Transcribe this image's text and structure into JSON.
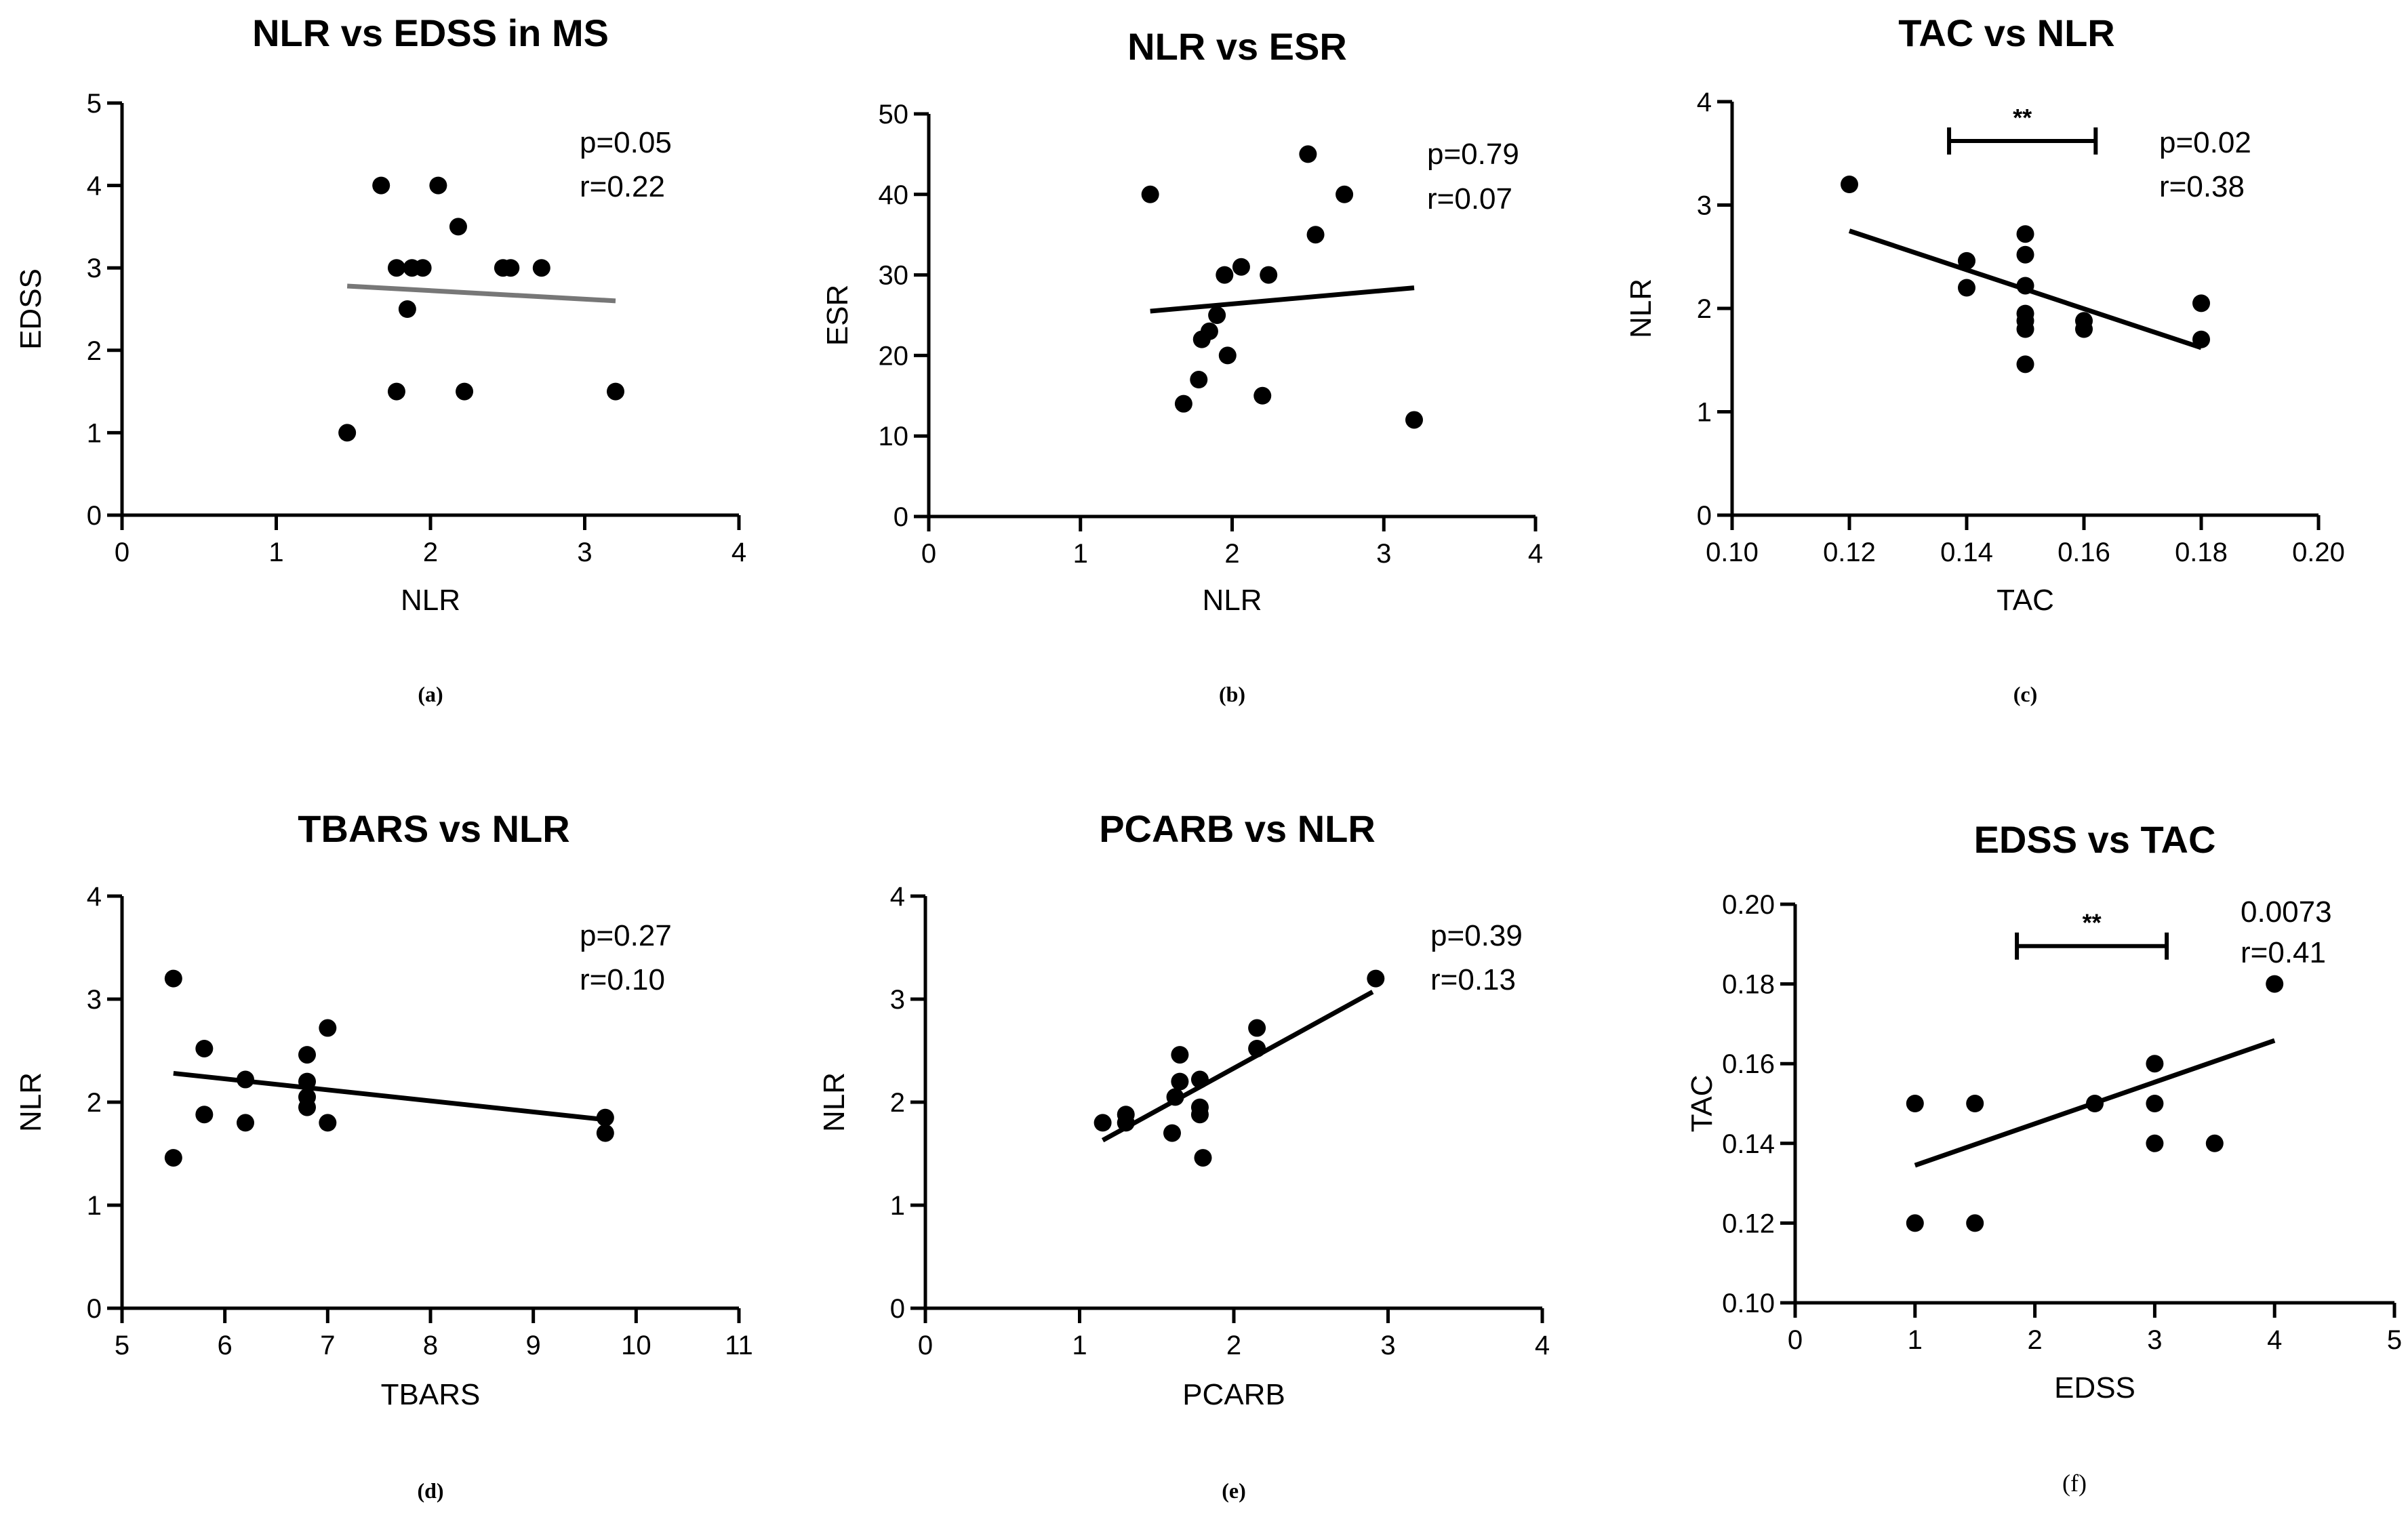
{
  "chart_data": [
    {
      "type": "scatter",
      "title": "NLR vs EDSS in MS",
      "xlabel": "NLR",
      "ylabel": "EDSS",
      "xlim": [
        0,
        4
      ],
      "ylim": [
        0,
        5
      ],
      "xticks": [
        0,
        1,
        2,
        3,
        4
      ],
      "yticks": [
        0,
        1,
        2,
        3,
        4,
        5
      ],
      "points": [
        [
          1.46,
          1
        ],
        [
          1.68,
          4
        ],
        [
          1.78,
          1.5
        ],
        [
          1.78,
          3
        ],
        [
          1.85,
          2.5
        ],
        [
          1.88,
          3
        ],
        [
          1.95,
          3
        ],
        [
          2.05,
          4
        ],
        [
          2.18,
          3.5
        ],
        [
          2.22,
          1.5
        ],
        [
          2.47,
          3
        ],
        [
          2.52,
          3
        ],
        [
          2.72,
          3
        ],
        [
          3.2,
          1.5
        ]
      ],
      "fit": {
        "x": [
          1.46,
          3.2
        ],
        "y": [
          2.78,
          2.6
        ],
        "color": "#777777"
      },
      "annotations": [
        "p=0.05",
        "r=0.22"
      ],
      "panel_label": "(a)"
    },
    {
      "type": "scatter",
      "title": "NLR vs ESR",
      "xlabel": "NLR",
      "ylabel": "ESR",
      "xlim": [
        0,
        4
      ],
      "ylim": [
        0,
        50
      ],
      "xticks": [
        0,
        1,
        2,
        3,
        4
      ],
      "yticks": [
        0,
        10,
        20,
        30,
        40,
        50
      ],
      "points": [
        [
          1.46,
          40
        ],
        [
          1.68,
          14
        ],
        [
          1.78,
          17
        ],
        [
          1.8,
          22
        ],
        [
          1.85,
          23
        ],
        [
          1.9,
          25
        ],
        [
          1.95,
          30
        ],
        [
          1.97,
          20
        ],
        [
          2.06,
          31
        ],
        [
          2.2,
          15
        ],
        [
          2.24,
          30
        ],
        [
          2.5,
          45
        ],
        [
          2.55,
          35
        ],
        [
          2.74,
          40
        ],
        [
          3.2,
          12
        ]
      ],
      "fit": {
        "x": [
          1.46,
          3.2
        ],
        "y": [
          25.5,
          28.4
        ],
        "color": "#000000"
      },
      "annotations": [
        "p=0.79",
        "r=0.07"
      ],
      "panel_label": "(b)"
    },
    {
      "type": "scatter",
      "title": "TAC vs NLR",
      "xlabel": "TAC",
      "ylabel": "NLR",
      "xlim": [
        0.1,
        0.2
      ],
      "ylim": [
        0,
        4
      ],
      "xticks": [
        "0.10",
        "0.12",
        "0.14",
        "0.16",
        "0.18",
        "0.20"
      ],
      "yticks": [
        0,
        1,
        2,
        3,
        4
      ],
      "points": [
        [
          0.12,
          3.2
        ],
        [
          0.14,
          2.46
        ],
        [
          0.14,
          2.2
        ],
        [
          0.15,
          2.72
        ],
        [
          0.15,
          2.52
        ],
        [
          0.15,
          2.22
        ],
        [
          0.15,
          1.95
        ],
        [
          0.15,
          1.88
        ],
        [
          0.15,
          1.8
        ],
        [
          0.15,
          1.46
        ],
        [
          0.16,
          1.88
        ],
        [
          0.16,
          1.8
        ],
        [
          0.18,
          2.05
        ],
        [
          0.18,
          1.7
        ]
      ],
      "fit": {
        "x": [
          0.12,
          0.18
        ],
        "y": [
          2.75,
          1.62
        ],
        "color": "#000000"
      },
      "significance": {
        "x1": 0.137,
        "x2": 0.162,
        "y": 3.62,
        "label": "**"
      },
      "annotations": [
        "p=0.02",
        "r=0.38"
      ],
      "panel_label": "(c)"
    },
    {
      "type": "scatter",
      "title": "TBARS vs NLR",
      "xlabel": "TBARS",
      "ylabel": "NLR",
      "xlim": [
        5,
        11
      ],
      "ylim": [
        0,
        4
      ],
      "xticks": [
        5,
        6,
        7,
        8,
        9,
        10,
        11
      ],
      "yticks": [
        0,
        1,
        2,
        3,
        4
      ],
      "points": [
        [
          5.5,
          3.2
        ],
        [
          5.5,
          1.46
        ],
        [
          5.8,
          2.52
        ],
        [
          5.8,
          1.88
        ],
        [
          6.2,
          2.22
        ],
        [
          6.2,
          1.8
        ],
        [
          6.8,
          2.46
        ],
        [
          6.8,
          2.2
        ],
        [
          6.8,
          2.05
        ],
        [
          6.8,
          1.95
        ],
        [
          7.0,
          2.72
        ],
        [
          7.0,
          1.8
        ],
        [
          9.7,
          1.85
        ],
        [
          9.7,
          1.7
        ]
      ],
      "fit": {
        "x": [
          5.5,
          9.7
        ],
        "y": [
          2.28,
          1.83
        ],
        "color": "#000000"
      },
      "annotations": [
        "p=0.27",
        "r=0.10"
      ],
      "panel_label": "(d)"
    },
    {
      "type": "scatter",
      "title": "PCARB vs NLR",
      "xlabel": "PCARB",
      "ylabel": "NLR",
      "xlim": [
        0,
        4
      ],
      "ylim": [
        0,
        4
      ],
      "xticks": [
        0,
        1,
        2,
        3,
        4
      ],
      "yticks": [
        0,
        1,
        2,
        3,
        4
      ],
      "points": [
        [
          1.15,
          1.8
        ],
        [
          1.3,
          1.88
        ],
        [
          1.3,
          1.8
        ],
        [
          1.6,
          1.7
        ],
        [
          1.62,
          2.05
        ],
        [
          1.65,
          2.46
        ],
        [
          1.65,
          2.2
        ],
        [
          1.78,
          2.22
        ],
        [
          1.78,
          1.95
        ],
        [
          1.78,
          1.88
        ],
        [
          1.8,
          1.46
        ],
        [
          2.15,
          2.72
        ],
        [
          2.15,
          2.52
        ],
        [
          2.92,
          3.2
        ]
      ],
      "fit": {
        "x": [
          1.15,
          2.9
        ],
        "y": [
          1.63,
          3.07
        ],
        "color": "#000000"
      },
      "annotations": [
        "p=0.39",
        "r=0.13"
      ],
      "panel_label": "(e)"
    },
    {
      "type": "scatter",
      "title": "EDSS vs TAC",
      "xlabel": "EDSS",
      "ylabel": "TAC",
      "xlim": [
        0,
        5
      ],
      "ylim": [
        0.1,
        0.2
      ],
      "xticks": [
        0,
        1,
        2,
        3,
        4,
        5
      ],
      "yticks": [
        "0.10",
        "0.12",
        "0.14",
        "0.16",
        "0.18",
        "0.20"
      ],
      "points": [
        [
          1,
          0.15
        ],
        [
          1,
          0.12
        ],
        [
          1.5,
          0.15
        ],
        [
          1.5,
          0.12
        ],
        [
          2.5,
          0.15
        ],
        [
          3,
          0.16
        ],
        [
          3,
          0.15
        ],
        [
          3,
          0.14
        ],
        [
          3.5,
          0.14
        ],
        [
          4,
          0.18
        ]
      ],
      "fit": {
        "x": [
          1,
          4
        ],
        "y": [
          0.1345,
          0.1658
        ],
        "color": "#000000"
      },
      "significance": {
        "x1": 1.85,
        "x2": 3.1,
        "y": 0.1895,
        "label": "**"
      },
      "annotations": [
        "0.0073",
        "r=0.41"
      ],
      "panel_label": "(f)"
    }
  ]
}
